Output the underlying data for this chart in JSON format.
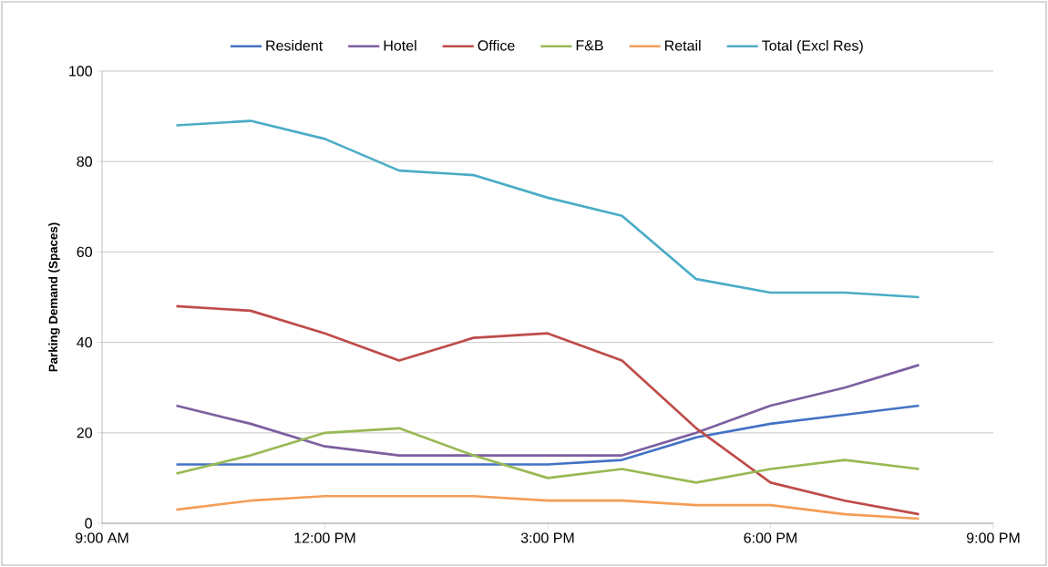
{
  "chart_data": {
    "type": "line",
    "ylabel": "Parking Demand (Spaces)",
    "x": [
      10,
      11,
      12,
      13,
      14,
      15,
      16,
      17,
      18,
      19,
      20
    ],
    "series": [
      {
        "name": "Resident",
        "color": "#4472c4",
        "values": [
          13,
          13,
          13,
          13,
          13,
          13,
          14,
          19,
          22,
          24,
          26
        ]
      },
      {
        "name": "Hotel",
        "color": "#7d5fa0",
        "values": [
          26,
          22,
          17,
          15,
          15,
          15,
          15,
          20,
          26,
          30,
          35
        ]
      },
      {
        "name": "Office",
        "color": "#be4b48",
        "values": [
          48,
          47,
          42,
          36,
          41,
          42,
          36,
          21,
          9,
          5,
          2
        ]
      },
      {
        "name": "F&B",
        "color": "#98b954",
        "values": [
          11,
          15,
          20,
          21,
          15,
          10,
          12,
          9,
          12,
          14,
          12
        ]
      },
      {
        "name": "Retail",
        "color": "#f59d56",
        "values": [
          3,
          5,
          6,
          6,
          6,
          5,
          5,
          4,
          4,
          2,
          1
        ]
      },
      {
        "name": "Total (Excl Res)",
        "color": "#4bacc6",
        "values": [
          88,
          89,
          85,
          78,
          77,
          72,
          68,
          54,
          51,
          51,
          50
        ]
      }
    ],
    "xlim": [
      9,
      21
    ],
    "xticks": [
      {
        "value": 9,
        "label": "9:00 AM"
      },
      {
        "value": 12,
        "label": "12:00 PM"
      },
      {
        "value": 15,
        "label": "3:00 PM"
      },
      {
        "value": 18,
        "label": "6:00 PM"
      },
      {
        "value": 21,
        "label": "9:00 PM"
      }
    ],
    "ylim": [
      0,
      100
    ],
    "yticks": [
      0,
      20,
      40,
      60,
      80,
      100
    ],
    "grid": "y",
    "legend": "top",
    "marker": "none",
    "line_style": "solid"
  }
}
